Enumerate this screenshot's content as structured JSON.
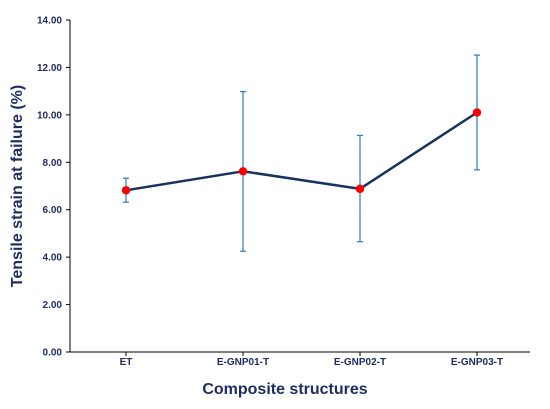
{
  "chart_data": {
    "type": "line",
    "title": "",
    "xlabel": "Composite structures",
    "ylabel": "Tensile strain at failure (%)",
    "categories": [
      "ET",
      "E-GNP01-T",
      "E-GNP02-T",
      "E-GNP03-T"
    ],
    "values": [
      6.82,
      7.62,
      6.88,
      10.1
    ],
    "error": [
      [
        6.32,
        7.33
      ],
      [
        4.25,
        10.98
      ],
      [
        4.65,
        9.13
      ],
      [
        7.68,
        12.52
      ]
    ],
    "ylim": [
      0,
      14
    ],
    "yticks": [
      "0.00",
      "2.00",
      "4.00",
      "6.00",
      "8.00",
      "10.00",
      "12.00",
      "14.00"
    ],
    "grid": false,
    "legend": "none",
    "colors": {
      "line": "#18335f",
      "marker": "#ff0000",
      "errorbar": "#2b78c8",
      "axis_text": "#1f2d63",
      "axis": "#000000"
    }
  }
}
